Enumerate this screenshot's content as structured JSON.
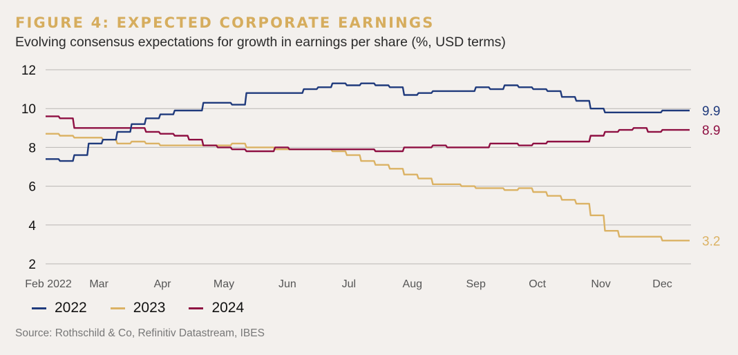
{
  "header": {
    "title": "FIGURE 4: EXPECTED CORPORATE EARNINGS",
    "subtitle": "Evolving consensus expectations for growth in earnings per share (%, USD terms)"
  },
  "source": "Source: Rothschild & Co, Refinitiv Datastream, IBES",
  "colors": {
    "2022": "#1f3a7c",
    "2023": "#dbb264",
    "2024": "#8e0f42",
    "background": "#f3f0ed",
    "title": "#d6ad5e"
  },
  "chart_data": {
    "type": "line",
    "title": "FIGURE 4: EXPECTED CORPORATE EARNINGS",
    "subtitle": "Evolving consensus expectations for growth in earnings per share (%, USD terms)",
    "xlabel": "",
    "ylabel": "",
    "ylim": [
      2,
      12
    ],
    "yticks": [
      "2",
      "4",
      "6",
      "8",
      "10",
      "12"
    ],
    "xticks": [
      {
        "label": "Feb 2022",
        "date": "2022-02-01"
      },
      {
        "label": "Mar",
        "date": "2022-03-01"
      },
      {
        "label": "Apr",
        "date": "2022-04-01"
      },
      {
        "label": "May",
        "date": "2022-05-01"
      },
      {
        "label": "Jun",
        "date": "2022-06-01"
      },
      {
        "label": "Jul",
        "date": "2022-07-01"
      },
      {
        "label": "Aug",
        "date": "2022-08-01"
      },
      {
        "label": "Sep",
        "date": "2022-09-01"
      },
      {
        "label": "Oct",
        "date": "2022-10-01"
      },
      {
        "label": "Nov",
        "date": "2022-11-01"
      },
      {
        "label": "Dec",
        "date": "2022-12-01"
      }
    ],
    "grid": "horizontal",
    "legend": "bottom-left",
    "step": true,
    "x": [
      "2022-02-04",
      "2022-02-11",
      "2022-02-18",
      "2022-02-25",
      "2022-03-04",
      "2022-03-11",
      "2022-03-18",
      "2022-03-25",
      "2022-04-01",
      "2022-04-08",
      "2022-04-15",
      "2022-04-22",
      "2022-04-29",
      "2022-05-06",
      "2022-05-13",
      "2022-05-20",
      "2022-05-27",
      "2022-06-03",
      "2022-06-10",
      "2022-06-17",
      "2022-06-24",
      "2022-07-01",
      "2022-07-08",
      "2022-07-15",
      "2022-07-22",
      "2022-07-29",
      "2022-08-05",
      "2022-08-12",
      "2022-08-19",
      "2022-08-26",
      "2022-09-02",
      "2022-09-09",
      "2022-09-16",
      "2022-09-23",
      "2022-09-30",
      "2022-10-07",
      "2022-10-14",
      "2022-10-21",
      "2022-10-28",
      "2022-11-04",
      "2022-11-11",
      "2022-11-18",
      "2022-11-25",
      "2022-12-02",
      "2022-12-09"
    ],
    "series": [
      {
        "name": "2022",
        "color": "#1f3a7c",
        "end_label": "9.9",
        "values": [
          7.4,
          7.3,
          7.6,
          8.2,
          8.4,
          8.8,
          9.2,
          9.5,
          9.7,
          9.9,
          9.9,
          10.3,
          10.3,
          10.2,
          10.8,
          10.8,
          10.8,
          10.8,
          11.0,
          11.1,
          11.3,
          11.2,
          11.3,
          11.2,
          11.1,
          10.7,
          10.8,
          10.9,
          10.9,
          10.9,
          11.1,
          11.0,
          11.2,
          11.1,
          11.0,
          10.9,
          10.6,
          10.4,
          10.0,
          9.8,
          9.8,
          9.8,
          9.8,
          9.9,
          9.9
        ]
      },
      {
        "name": "2023",
        "color": "#dbb264",
        "end_label": "3.2",
        "values": [
          8.7,
          8.6,
          8.5,
          8.5,
          8.4,
          8.2,
          8.3,
          8.2,
          8.1,
          8.1,
          8.1,
          8.1,
          8.1,
          8.2,
          8.0,
          8.0,
          7.9,
          7.9,
          7.9,
          7.9,
          7.8,
          7.6,
          7.3,
          7.1,
          6.9,
          6.6,
          6.4,
          6.1,
          6.1,
          6.0,
          5.9,
          5.9,
          5.8,
          5.9,
          5.7,
          5.5,
          5.3,
          5.1,
          4.5,
          3.7,
          3.4,
          3.4,
          3.4,
          3.2,
          3.2
        ]
      },
      {
        "name": "2024",
        "color": "#8e0f42",
        "end_label": "8.9",
        "values": [
          9.6,
          9.5,
          9.0,
          9.0,
          9.0,
          9.0,
          9.0,
          8.8,
          8.7,
          8.6,
          8.4,
          8.1,
          8.0,
          7.9,
          7.8,
          7.8,
          8.0,
          7.9,
          7.9,
          7.9,
          7.9,
          7.9,
          7.9,
          7.8,
          7.8,
          8.0,
          8.0,
          8.1,
          8.0,
          8.0,
          8.0,
          8.2,
          8.2,
          8.1,
          8.2,
          8.3,
          8.3,
          8.3,
          8.6,
          8.8,
          8.9,
          9.0,
          8.8,
          8.9,
          8.9
        ]
      }
    ]
  }
}
